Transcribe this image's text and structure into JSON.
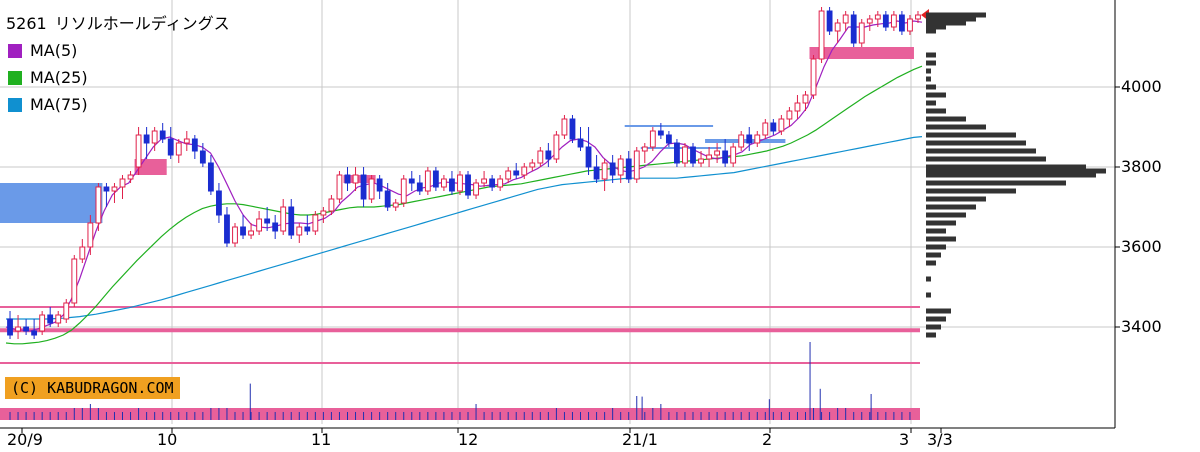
{
  "chart_data": {
    "type": "candlestick",
    "title": "5261 リソルホールディングス",
    "series": [
      {
        "name": "MA(5)",
        "color": "#a020c0"
      },
      {
        "name": "MA(25)",
        "color": "#20b020"
      },
      {
        "name": "MA(75)",
        "color": "#1090d0"
      }
    ],
    "y_ticks": [
      "4000",
      "3800",
      "3600",
      "3400"
    ],
    "x_ticks": [
      "20/9",
      "10",
      "11",
      "12",
      "21/1",
      "2",
      "3",
      "3/3"
    ],
    "ylim": [
      3200,
      4200
    ],
    "grid": true,
    "candles": [
      [
        3420,
        3440,
        3370,
        3380
      ],
      [
        3390,
        3430,
        3370,
        3400
      ],
      [
        3400,
        3420,
        3380,
        3390
      ],
      [
        3390,
        3420,
        3370,
        3380
      ],
      [
        3390,
        3440,
        3380,
        3430
      ],
      [
        3430,
        3450,
        3400,
        3410
      ],
      [
        3410,
        3440,
        3400,
        3430
      ],
      [
        3420,
        3470,
        3410,
        3460
      ],
      [
        3460,
        3580,
        3450,
        3570
      ],
      [
        3570,
        3620,
        3560,
        3600
      ],
      [
        3600,
        3680,
        3580,
        3660
      ],
      [
        3660,
        3760,
        3640,
        3750
      ],
      [
        3750,
        3760,
        3700,
        3740
      ],
      [
        3740,
        3760,
        3710,
        3750
      ],
      [
        3750,
        3780,
        3720,
        3770
      ],
      [
        3770,
        3790,
        3760,
        3780
      ],
      [
        3800,
        3900,
        3780,
        3880
      ],
      [
        3880,
        3900,
        3820,
        3860
      ],
      [
        3860,
        3900,
        3840,
        3890
      ],
      [
        3890,
        3910,
        3860,
        3870
      ],
      [
        3870,
        3900,
        3820,
        3830
      ],
      [
        3830,
        3870,
        3810,
        3860
      ],
      [
        3860,
        3890,
        3840,
        3870
      ],
      [
        3870,
        3880,
        3820,
        3840
      ],
      [
        3840,
        3860,
        3800,
        3810
      ],
      [
        3810,
        3830,
        3730,
        3740
      ],
      [
        3740,
        3760,
        3660,
        3680
      ],
      [
        3680,
        3700,
        3600,
        3610
      ],
      [
        3610,
        3660,
        3600,
        3650
      ],
      [
        3650,
        3680,
        3620,
        3630
      ],
      [
        3630,
        3660,
        3620,
        3640
      ],
      [
        3640,
        3690,
        3630,
        3670
      ],
      [
        3670,
        3700,
        3640,
        3660
      ],
      [
        3660,
        3680,
        3620,
        3640
      ],
      [
        3640,
        3720,
        3630,
        3700
      ],
      [
        3700,
        3720,
        3620,
        3630
      ],
      [
        3630,
        3660,
        3610,
        3650
      ],
      [
        3650,
        3680,
        3630,
        3640
      ],
      [
        3640,
        3690,
        3630,
        3680
      ],
      [
        3680,
        3700,
        3660,
        3690
      ],
      [
        3690,
        3730,
        3680,
        3720
      ],
      [
        3720,
        3790,
        3710,
        3780
      ],
      [
        3780,
        3800,
        3740,
        3760
      ],
      [
        3760,
        3800,
        3740,
        3780
      ],
      [
        3780,
        3800,
        3700,
        3720
      ],
      [
        3720,
        3780,
        3710,
        3770
      ],
      [
        3770,
        3780,
        3720,
        3740
      ],
      [
        3740,
        3760,
        3690,
        3700
      ],
      [
        3700,
        3720,
        3690,
        3710
      ],
      [
        3710,
        3780,
        3700,
        3770
      ],
      [
        3770,
        3790,
        3740,
        3760
      ],
      [
        3760,
        3780,
        3730,
        3740
      ],
      [
        3740,
        3800,
        3730,
        3790
      ],
      [
        3790,
        3800,
        3740,
        3750
      ],
      [
        3750,
        3780,
        3740,
        3770
      ],
      [
        3770,
        3790,
        3730,
        3740
      ],
      [
        3740,
        3790,
        3730,
        3780
      ],
      [
        3780,
        3790,
        3720,
        3730
      ],
      [
        3730,
        3770,
        3720,
        3760
      ],
      [
        3760,
        3790,
        3750,
        3770
      ],
      [
        3770,
        3780,
        3740,
        3750
      ],
      [
        3750,
        3780,
        3740,
        3770
      ],
      [
        3770,
        3800,
        3760,
        3790
      ],
      [
        3790,
        3810,
        3770,
        3780
      ],
      [
        3780,
        3810,
        3770,
        3800
      ],
      [
        3800,
        3820,
        3790,
        3810
      ],
      [
        3810,
        3850,
        3800,
        3840
      ],
      [
        3840,
        3860,
        3800,
        3820
      ],
      [
        3820,
        3890,
        3810,
        3880
      ],
      [
        3880,
        3930,
        3870,
        3920
      ],
      [
        3920,
        3930,
        3860,
        3870
      ],
      [
        3870,
        3900,
        3840,
        3850
      ],
      [
        3850,
        3900,
        3780,
        3800
      ],
      [
        3800,
        3830,
        3760,
        3770
      ],
      [
        3770,
        3820,
        3740,
        3810
      ],
      [
        3810,
        3830,
        3760,
        3780
      ],
      [
        3780,
        3830,
        3760,
        3820
      ],
      [
        3820,
        3840,
        3760,
        3770
      ],
      [
        3770,
        3850,
        3760,
        3840
      ],
      [
        3840,
        3860,
        3810,
        3850
      ],
      [
        3850,
        3900,
        3840,
        3890
      ],
      [
        3890,
        3910,
        3870,
        3880
      ],
      [
        3880,
        3890,
        3850,
        3860
      ],
      [
        3860,
        3870,
        3800,
        3810
      ],
      [
        3810,
        3860,
        3800,
        3850
      ],
      [
        3850,
        3860,
        3800,
        3810
      ],
      [
        3810,
        3840,
        3800,
        3820
      ],
      [
        3820,
        3850,
        3800,
        3830
      ],
      [
        3830,
        3860,
        3810,
        3840
      ],
      [
        3840,
        3870,
        3800,
        3810
      ],
      [
        3810,
        3860,
        3800,
        3850
      ],
      [
        3850,
        3890,
        3840,
        3880
      ],
      [
        3880,
        3900,
        3840,
        3860
      ],
      [
        3860,
        3890,
        3850,
        3880
      ],
      [
        3880,
        3920,
        3870,
        3910
      ],
      [
        3910,
        3920,
        3880,
        3890
      ],
      [
        3890,
        3930,
        3880,
        3920
      ],
      [
        3920,
        3950,
        3900,
        3940
      ],
      [
        3940,
        3980,
        3920,
        3960
      ],
      [
        3960,
        3990,
        3940,
        3980
      ],
      [
        3980,
        4080,
        3970,
        4070
      ],
      [
        4070,
        4200,
        4060,
        4190
      ],
      [
        4190,
        4200,
        4130,
        4140
      ],
      [
        4140,
        4170,
        4110,
        4160
      ],
      [
        4160,
        4190,
        4140,
        4180
      ],
      [
        4180,
        4190,
        4100,
        4110
      ],
      [
        4110,
        4170,
        4100,
        4160
      ],
      [
        4160,
        4180,
        4140,
        4170
      ],
      [
        4170,
        4190,
        4150,
        4180
      ],
      [
        4180,
        4190,
        4140,
        4150
      ],
      [
        4150,
        4190,
        4140,
        4180
      ],
      [
        4180,
        4190,
        4130,
        4140
      ],
      [
        4140,
        4180,
        4130,
        4170
      ],
      [
        4170,
        4190,
        4160,
        4180
      ]
    ],
    "volumes": [
      2,
      2,
      2,
      2,
      2,
      2,
      2,
      2,
      3,
      3,
      4,
      3,
      2,
      2,
      2,
      2,
      3,
      2,
      2,
      2,
      2,
      2,
      2,
      2,
      2,
      3,
      3,
      3,
      2,
      2,
      2,
      2,
      2,
      2,
      2,
      2,
      2,
      2,
      2,
      2,
      2,
      2,
      2,
      2,
      2,
      2,
      2,
      2,
      2,
      2,
      2,
      2,
      2,
      2,
      2,
      2,
      2,
      2,
      4,
      2,
      2,
      2,
      2,
      2,
      2,
      2,
      2,
      2,
      3,
      2,
      2,
      2,
      2,
      2,
      2,
      3,
      2,
      2,
      6,
      2,
      3,
      4,
      2,
      2,
      2,
      2,
      2,
      2,
      2,
      2,
      2,
      2,
      2,
      2,
      2,
      2,
      2,
      2,
      2,
      2,
      3,
      2,
      2,
      3,
      3,
      2,
      2,
      2,
      2,
      2,
      2,
      2,
      2
    ],
    "volume_highlights": [
      [
        48,
        14
      ],
      [
        125,
        9
      ],
      [
        150,
        8
      ],
      [
        158,
        30
      ],
      [
        160,
        12
      ],
      [
        170,
        10
      ]
    ],
    "volume_profile": [
      [
        4180,
        60
      ],
      [
        4170,
        50
      ],
      [
        4160,
        40
      ],
      [
        4150,
        20
      ],
      [
        4140,
        10
      ],
      [
        4080,
        10
      ],
      [
        4060,
        10
      ],
      [
        4040,
        5
      ],
      [
        4020,
        5
      ],
      [
        4000,
        10
      ],
      [
        3980,
        20
      ],
      [
        3960,
        10
      ],
      [
        3940,
        20
      ],
      [
        3920,
        40
      ],
      [
        3900,
        60
      ],
      [
        3880,
        90
      ],
      [
        3860,
        100
      ],
      [
        3840,
        110
      ],
      [
        3820,
        120
      ],
      [
        3800,
        160
      ],
      [
        3790,
        180
      ],
      [
        3780,
        170
      ],
      [
        3760,
        140
      ],
      [
        3740,
        90
      ],
      [
        3720,
        60
      ],
      [
        3700,
        50
      ],
      [
        3680,
        40
      ],
      [
        3660,
        30
      ],
      [
        3640,
        20
      ],
      [
        3620,
        30
      ],
      [
        3600,
        20
      ],
      [
        3580,
        15
      ],
      [
        3560,
        10
      ],
      [
        3520,
        5
      ],
      [
        3480,
        5
      ],
      [
        3440,
        25
      ],
      [
        3420,
        20
      ],
      [
        3400,
        15
      ],
      [
        3380,
        10
      ]
    ],
    "ma5": [
      3400,
      3395,
      3392,
      3390,
      3396,
      3404,
      3412,
      3430,
      3470,
      3520,
      3580,
      3640,
      3690,
      3730,
      3750,
      3760,
      3790,
      3820,
      3850,
      3870,
      3875,
      3866,
      3858,
      3856,
      3850,
      3835,
      3800,
      3758,
      3715,
      3680,
      3656,
      3650,
      3648,
      3652,
      3658,
      3660,
      3660,
      3658,
      3665,
      3672,
      3686,
      3712,
      3730,
      3750,
      3756,
      3760,
      3752,
      3742,
      3732,
      3728,
      3740,
      3748,
      3752,
      3760,
      3762,
      3760,
      3758,
      3756,
      3752,
      3754,
      3756,
      3758,
      3768,
      3774,
      3786,
      3796,
      3810,
      3830,
      3850,
      3866,
      3870,
      3864,
      3850,
      3824,
      3806,
      3792,
      3788,
      3792,
      3800,
      3814,
      3838,
      3858,
      3860,
      3856,
      3844,
      3834,
      3824,
      3820,
      3826,
      3830,
      3838,
      3856,
      3864,
      3872,
      3880,
      3892,
      3904,
      3924,
      3950,
      3998,
      4050,
      4092,
      4120,
      4150,
      4150,
      4150,
      4155,
      4158,
      4160,
      4165,
      4160,
      4165,
      4162
    ],
    "ma25": [
      3360,
      3358,
      3358,
      3360,
      3362,
      3366,
      3372,
      3380,
      3392,
      3410,
      3430,
      3452,
      3476,
      3500,
      3522,
      3544,
      3566,
      3586,
      3606,
      3626,
      3644,
      3660,
      3674,
      3686,
      3696,
      3702,
      3706,
      3708,
      3708,
      3706,
      3702,
      3698,
      3694,
      3690,
      3686,
      3682,
      3680,
      3680,
      3682,
      3686,
      3690,
      3694,
      3698,
      3700,
      3700,
      3700,
      3702,
      3704,
      3706,
      3710,
      3714,
      3718,
      3722,
      3726,
      3730,
      3734,
      3738,
      3742,
      3746,
      3750,
      3752,
      3754,
      3756,
      3758,
      3762,
      3766,
      3770,
      3774,
      3778,
      3782,
      3786,
      3790,
      3792,
      3794,
      3796,
      3798,
      3800,
      3802,
      3804,
      3806,
      3808,
      3810,
      3812,
      3814,
      3816,
      3818,
      3820,
      3822,
      3824,
      3826,
      3828,
      3832,
      3836,
      3840,
      3846,
      3852,
      3860,
      3870,
      3880,
      3892,
      3906,
      3920,
      3934,
      3948,
      3962,
      3976,
      3988,
      4000,
      4012,
      4024,
      4034,
      4044,
      4052
    ],
    "ma75": [
      3420,
      3420,
      3420,
      3420,
      3420,
      3420,
      3421,
      3422,
      3424,
      3426,
      3429,
      3432,
      3436,
      3440,
      3444,
      3448,
      3453,
      3458,
      3463,
      3468,
      3474,
      3480,
      3486,
      3492,
      3498,
      3504,
      3510,
      3516,
      3522,
      3528,
      3534,
      3540,
      3546,
      3552,
      3558,
      3564,
      3570,
      3576,
      3582,
      3588,
      3594,
      3600,
      3606,
      3612,
      3618,
      3624,
      3630,
      3636,
      3642,
      3648,
      3654,
      3660,
      3666,
      3672,
      3678,
      3684,
      3690,
      3696,
      3702,
      3708,
      3714,
      3720,
      3726,
      3732,
      3738,
      3744,
      3748,
      3752,
      3756,
      3758,
      3760,
      3762,
      3764,
      3766,
      3768,
      3770,
      3772,
      3772,
      3772,
      3772,
      3772,
      3772,
      3772,
      3774,
      3776,
      3778,
      3780,
      3782,
      3784,
      3786,
      3790,
      3794,
      3798,
      3802,
      3806,
      3810,
      3814,
      3818,
      3822,
      3826,
      3830,
      3834,
      3838,
      3842,
      3846,
      3850,
      3854,
      3858,
      3862,
      3866,
      3870,
      3874,
      3876
    ],
    "pink_boxes": [
      [
        16,
        19,
        3820,
        3780
      ],
      [
        42,
        45,
        3780,
        3760
      ],
      [
        100,
        112,
        4100,
        4070
      ]
    ],
    "blue_boxes": [
      [
        0,
        11,
        3760,
        3660
      ],
      [
        77,
        87,
        3905,
        3900
      ],
      [
        79,
        88,
        3850,
        3845
      ],
      [
        87,
        96,
        3870,
        3860
      ]
    ],
    "hlines_pink": [
      3450,
      3392,
      3310
    ],
    "volume_band": [
      3210,
      3190
    ]
  },
  "credit": "(C) KABUDRAGON.COM",
  "legend_code": "5261",
  "legend_name": "リソルホールディングス",
  "colors": {
    "up": "#e0204a",
    "down": "#1a2dd0",
    "pink": "#e8609a",
    "blue_box": "#6a9ae8",
    "grid": "#c8c8c8",
    "profile": "#333333",
    "credit_bg": "#f0a020",
    "marker": "#e02020"
  }
}
